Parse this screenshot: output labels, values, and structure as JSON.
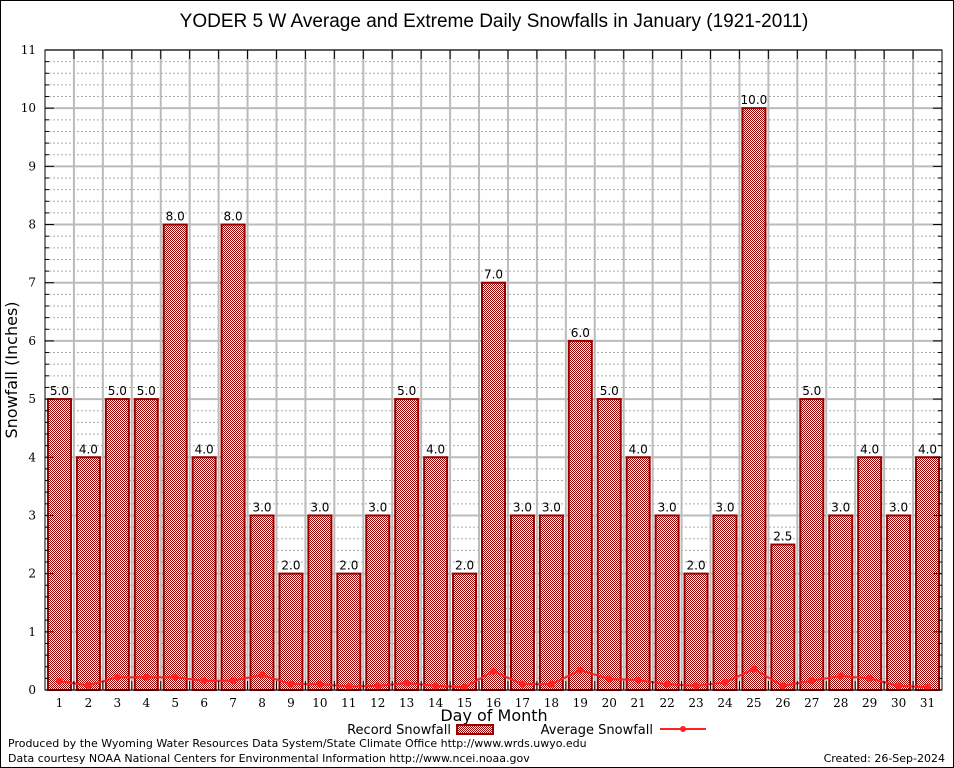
{
  "chart_data": {
    "type": "bar",
    "title": "YODER 5 W Average and Extreme Daily Snowfalls in January (1921-2011)",
    "xlabel": "Day of Month",
    "ylabel": "Snowfall (Inches)",
    "ylim": [
      0,
      11
    ],
    "yticks": [
      0,
      1,
      2,
      3,
      4,
      5,
      6,
      7,
      8,
      9,
      10,
      11
    ],
    "grid": true,
    "categories": [
      "1",
      "2",
      "3",
      "4",
      "5",
      "6",
      "7",
      "8",
      "9",
      "10",
      "11",
      "12",
      "13",
      "14",
      "15",
      "16",
      "17",
      "18",
      "19",
      "20",
      "21",
      "22",
      "23",
      "24",
      "25",
      "26",
      "27",
      "28",
      "29",
      "30",
      "31"
    ],
    "series": [
      {
        "name": "Record Snowfall",
        "type": "bar",
        "color": "#990000",
        "values": [
          5.0,
          4.0,
          5.0,
          5.0,
          8.0,
          4.0,
          8.0,
          3.0,
          2.0,
          3.0,
          2.0,
          3.0,
          5.0,
          4.0,
          2.0,
          7.0,
          3.0,
          3.0,
          6.0,
          5.0,
          4.0,
          3.0,
          2.0,
          3.0,
          10.0,
          2.5,
          5.0,
          3.0,
          4.0,
          3.0,
          4.0
        ],
        "labels": [
          "5.0",
          "4.0",
          "5.0",
          "5.0",
          "8.0",
          "4.0",
          "8.0",
          "3.0",
          "2.0",
          "3.0",
          "2.0",
          "3.0",
          "5.0",
          "4.0",
          "2.0",
          "7.0",
          "3.0",
          "3.0",
          "6.0",
          "5.0",
          "4.0",
          "3.0",
          "2.0",
          "3.0",
          "10.0",
          "2.5",
          "5.0",
          "3.0",
          "4.0",
          "3.0",
          "4.0"
        ]
      },
      {
        "name": "Average Snowfall",
        "type": "line",
        "color": "#ff2020",
        "values": [
          0.15,
          0.08,
          0.22,
          0.22,
          0.22,
          0.16,
          0.16,
          0.26,
          0.1,
          0.1,
          0.06,
          0.07,
          0.12,
          0.07,
          0.05,
          0.32,
          0.1,
          0.1,
          0.34,
          0.19,
          0.17,
          0.1,
          0.07,
          0.13,
          0.36,
          0.07,
          0.16,
          0.24,
          0.2,
          0.07,
          0.05
        ]
      }
    ],
    "legend": {
      "placement": "bottom",
      "record_label": "Record Snowfall",
      "average_label": "Average Snowfall"
    }
  },
  "footer": {
    "line1": "Produced by the Wyoming Water Resources Data System/State Climate Office http://www.wrds.uwyo.edu",
    "line2": "Data courtesy NOAA National Centers for Environmental Information http://www.ncei.noaa.gov",
    "created": "Created:  26-Sep-2024"
  }
}
